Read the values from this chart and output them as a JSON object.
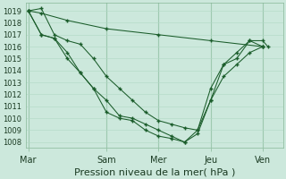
{
  "title": "Pression niveau de la mer( hPa )",
  "bg_color": "#cce8dc",
  "grid_color_minor": "#b0d8c4",
  "grid_color_major": "#88b898",
  "line_color": "#1a5c2a",
  "x_ticks_labels": [
    "Mar",
    "Sam",
    "Mer",
    "Jeu",
    "Ven"
  ],
  "x_ticks_pos": [
    0,
    3.0,
    5.0,
    7.0,
    9.0
  ],
  "xlim": [
    -0.1,
    9.8
  ],
  "ylim": [
    1007.5,
    1019.7
  ],
  "yticks": [
    1008,
    1009,
    1010,
    1011,
    1012,
    1013,
    1014,
    1015,
    1016,
    1017,
    1018,
    1019
  ],
  "series": [
    {
      "x": [
        0,
        0.5,
        1.5,
        3.0,
        5.0,
        7.0,
        9.0
      ],
      "y": [
        1019,
        1018.8,
        1018.2,
        1017.5,
        1017.0,
        1016.5,
        1016.0
      ]
    },
    {
      "x": [
        0,
        0.5,
        1.0,
        1.5,
        2.0,
        2.5,
        3.0,
        3.5,
        4.0,
        4.5,
        5.0,
        5.5,
        6.0,
        6.5,
        7.0,
        7.5,
        8.0,
        8.5,
        9.0
      ],
      "y": [
        1019,
        1019.2,
        1017.0,
        1016.5,
        1016.2,
        1015.0,
        1013.5,
        1012.5,
        1011.5,
        1010.5,
        1009.8,
        1009.5,
        1009.2,
        1009.0,
        1012.5,
        1014.5,
        1015.5,
        1016.5,
        1016.0
      ]
    },
    {
      "x": [
        0,
        0.5,
        1.0,
        1.5,
        2.0,
        2.5,
        3.0,
        3.5,
        4.0,
        4.5,
        5.0,
        5.5,
        6.0,
        6.5,
        7.0,
        7.5,
        8.0,
        8.5,
        9.0
      ],
      "y": [
        1019,
        1017.0,
        1016.7,
        1015.5,
        1013.8,
        1012.5,
        1011.5,
        1010.2,
        1010.0,
        1009.5,
        1009.0,
        1008.5,
        1008.0,
        1008.7,
        1011.5,
        1013.5,
        1014.5,
        1015.5,
        1016.0
      ]
    },
    {
      "x": [
        0,
        0.5,
        1.0,
        1.5,
        2.0,
        2.5,
        3.0,
        3.5,
        4.0,
        4.5,
        5.0,
        5.5,
        6.0,
        6.5,
        7.0,
        7.5,
        8.0,
        8.5,
        9.0,
        9.2
      ],
      "y": [
        1019,
        1017.0,
        1016.7,
        1015.0,
        1013.8,
        1012.5,
        1010.5,
        1010.0,
        1009.8,
        1009.0,
        1008.5,
        1008.3,
        1008.0,
        1009.0,
        1011.5,
        1014.5,
        1015.0,
        1016.5,
        1016.5,
        1016.0
      ]
    }
  ],
  "vlines_pos": [
    0,
    3.0,
    5.0,
    7.0,
    9.0
  ],
  "xlabel_fontsize": 7.5,
  "ylabel_fontsize": 6,
  "xtick_fontsize": 7,
  "title_fontsize": 8
}
